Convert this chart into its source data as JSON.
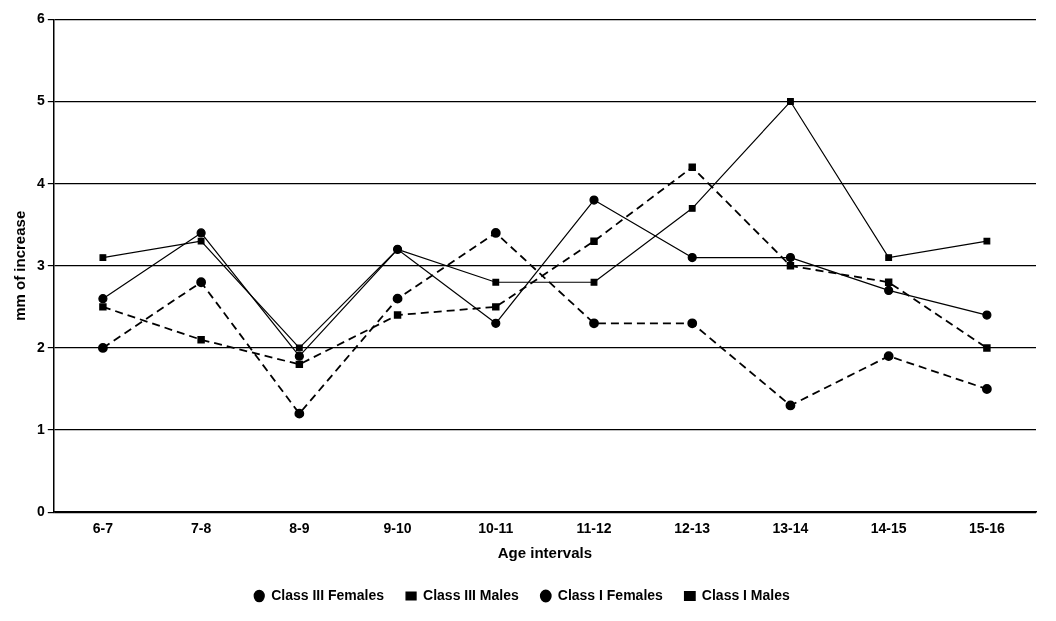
{
  "chart_data": {
    "type": "line",
    "xlabel": "Age intervals",
    "ylabel": "mm of increase",
    "categories": [
      "6-7",
      "7-8",
      "8-9",
      "9-10",
      "10-11",
      "11-12",
      "12-13",
      "13-14",
      "14-15",
      "15-16"
    ],
    "series": [
      {
        "name": "Class III Females",
        "color": "#000000",
        "marker": "circle",
        "line_style": "solid",
        "values": [
          2.6,
          3.4,
          1.9,
          3.2,
          2.3,
          3.8,
          3.1,
          3.1,
          2.7,
          2.4
        ]
      },
      {
        "name": "Class III Males",
        "color": "#000000",
        "marker": "square",
        "line_style": "solid",
        "values": [
          3.1,
          3.3,
          2.0,
          3.2,
          2.8,
          2.8,
          3.7,
          5.0,
          3.1,
          3.3
        ]
      },
      {
        "name": "Class I Females",
        "color": "#000000",
        "marker": "circle",
        "line_style": "dashed",
        "values": [
          2.0,
          2.8,
          1.2,
          2.6,
          3.4,
          2.3,
          2.3,
          1.3,
          1.9,
          1.5
        ]
      },
      {
        "name": "Class I Males",
        "color": "#000000",
        "marker": "square",
        "line_style": "dashed",
        "values": [
          2.5,
          2.1,
          1.8,
          2.4,
          2.5,
          3.3,
          4.2,
          3.0,
          2.8,
          2.0
        ]
      }
    ],
    "ylim": [
      0,
      6
    ],
    "yticks": [
      0,
      1,
      2,
      3,
      4,
      5,
      6
    ],
    "grid": "y",
    "legend": "bottom"
  }
}
